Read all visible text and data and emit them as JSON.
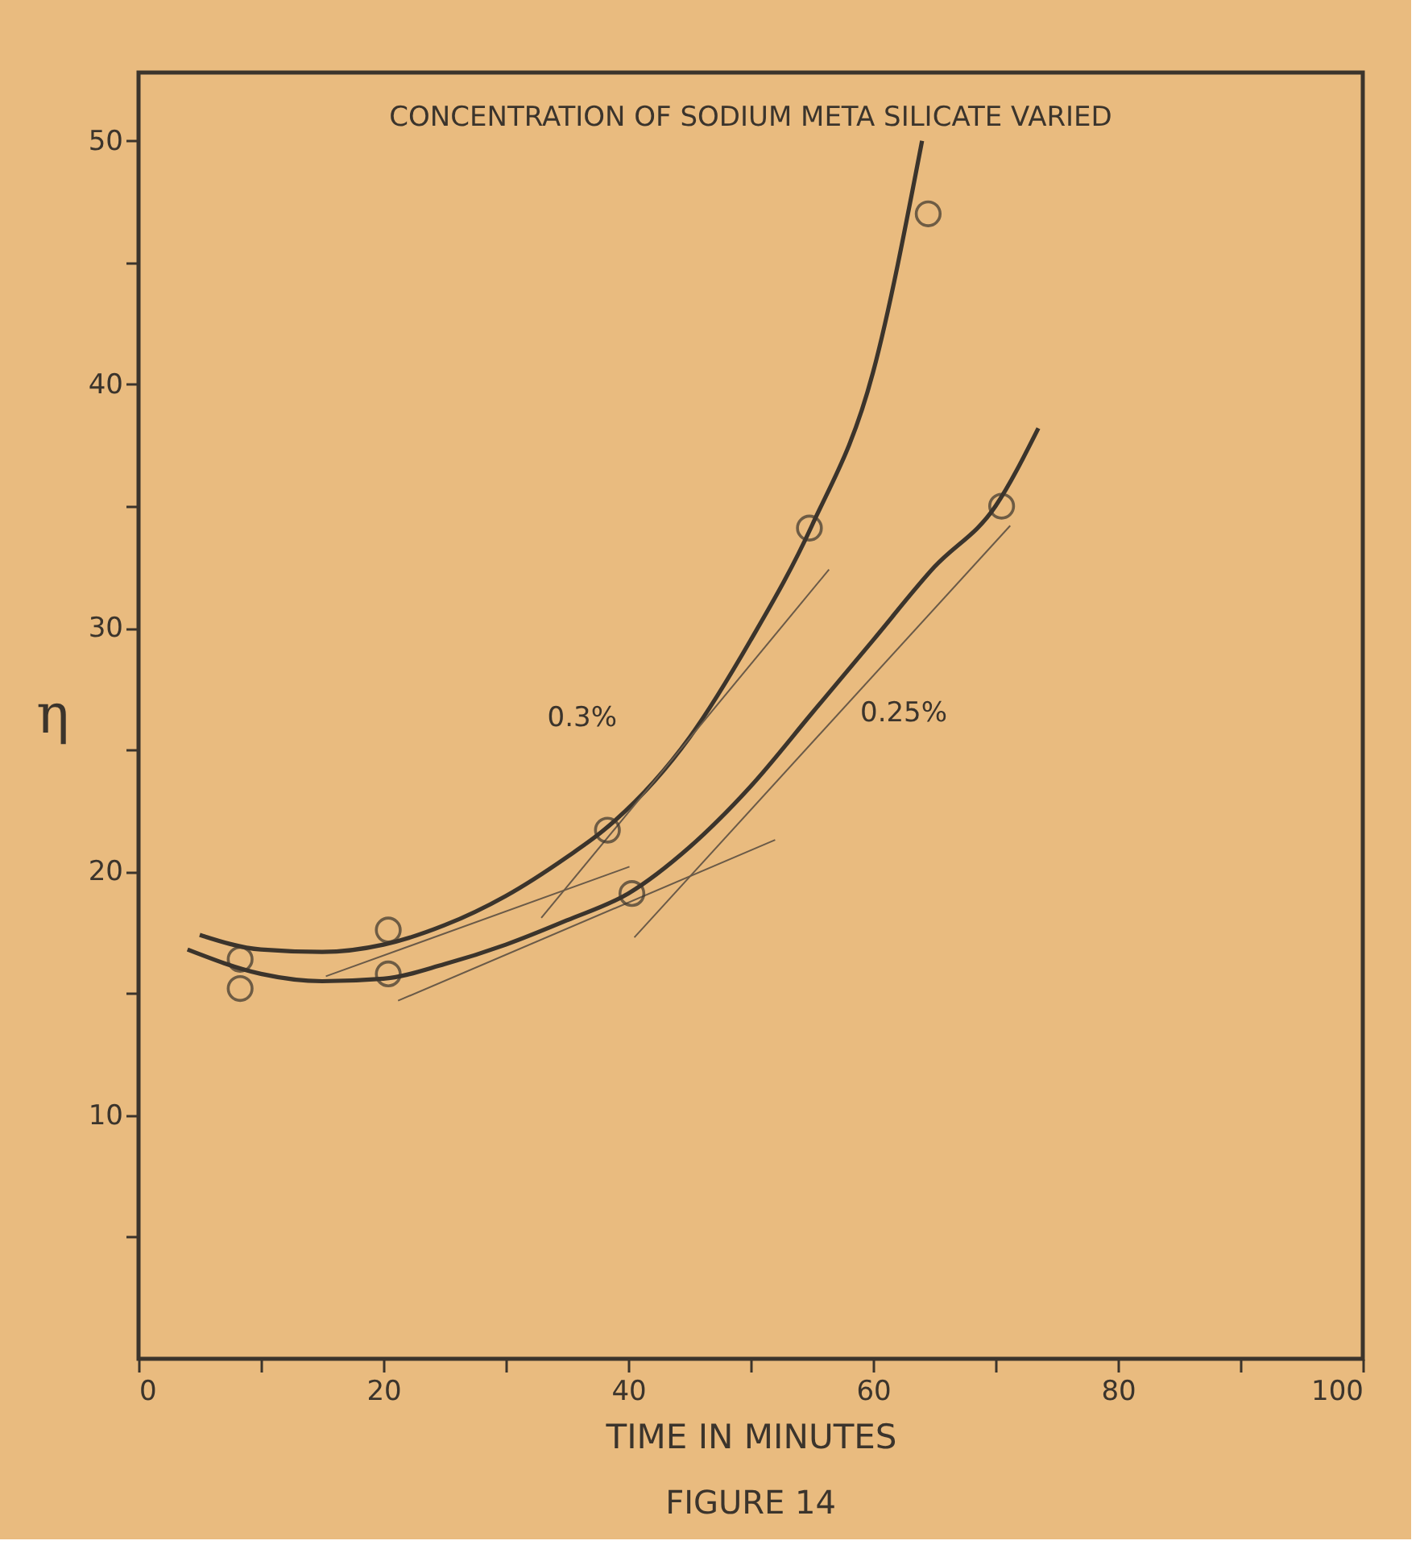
{
  "chart_data": {
    "type": "line",
    "title": "CONCENTRATION OF SODIUM META SILICATE VARIED",
    "xlabel": "TIME IN MINUTES",
    "ylabel": "η",
    "xlim": [
      0,
      100
    ],
    "ylim": [
      0,
      52.8
    ],
    "xticks": [
      0,
      {
        "value": 10,
        "label": null
      },
      20,
      {
        "value": 30,
        "label": null
      },
      40,
      {
        "value": 50,
        "label": null
      },
      60,
      {
        "value": 70,
        "label": null
      },
      80,
      {
        "value": 90,
        "label": null
      },
      100
    ],
    "yticks": [
      {
        "value": 5,
        "label": null
      },
      10,
      {
        "value": 15,
        "label": null
      },
      20,
      {
        "value": 25,
        "label": null
      },
      30,
      {
        "value": 35,
        "label": null
      },
      40,
      {
        "value": 45,
        "label": null
      },
      50
    ],
    "grid": false,
    "series": [
      {
        "name": "0.3%",
        "color": "#3b342c",
        "x": [
          5,
          10,
          15,
          20,
          25,
          30,
          35,
          38,
          45,
          50,
          55,
          60,
          64
        ],
        "values": [
          17.4,
          16.8,
          16.7,
          17.0,
          17.8,
          19.0,
          20.6,
          21.7,
          25.5,
          29.5,
          34.2,
          40.5,
          50
        ]
      },
      {
        "name": "0.25%",
        "color": "#3b342c",
        "x": [
          4,
          10,
          15,
          20,
          25,
          30,
          35,
          40,
          45,
          50,
          55,
          60,
          65,
          70,
          73.5
        ],
        "values": [
          16.8,
          15.8,
          15.5,
          15.6,
          16.2,
          17.0,
          18.0,
          19.1,
          21.0,
          23.5,
          26.5,
          29.5,
          32.5,
          35.0,
          38.2
        ]
      },
      {
        "color": "#6a5a48",
        "x": [
          15.3,
          40.1
        ],
        "values": [
          15.7,
          20.2
        ]
      },
      {
        "color": "#6a5a48",
        "x": [
          32.9,
          56.4
        ],
        "values": [
          18.1,
          32.4
        ]
      },
      {
        "color": "#6a5a48",
        "x": [
          21.2,
          52
        ],
        "values": [
          14.7,
          21.3
        ]
      },
      {
        "color": "#6a5a48",
        "x": [
          40.5,
          71.2
        ],
        "values": [
          17.3,
          34.2
        ]
      },
      {
        "type": "scatter",
        "marker": "circle",
        "color": "#3b342c",
        "x": [
          8.3,
          8.3,
          20.4,
          20.4,
          38.3,
          40.3,
          54.8,
          64.5,
          70.5
        ],
        "values": [
          16.4,
          15.2,
          17.6,
          15.8,
          21.7,
          19.1,
          34.1,
          47,
          35.0
        ]
      }
    ],
    "annotations": [
      "FIGURE 14"
    ]
  }
}
